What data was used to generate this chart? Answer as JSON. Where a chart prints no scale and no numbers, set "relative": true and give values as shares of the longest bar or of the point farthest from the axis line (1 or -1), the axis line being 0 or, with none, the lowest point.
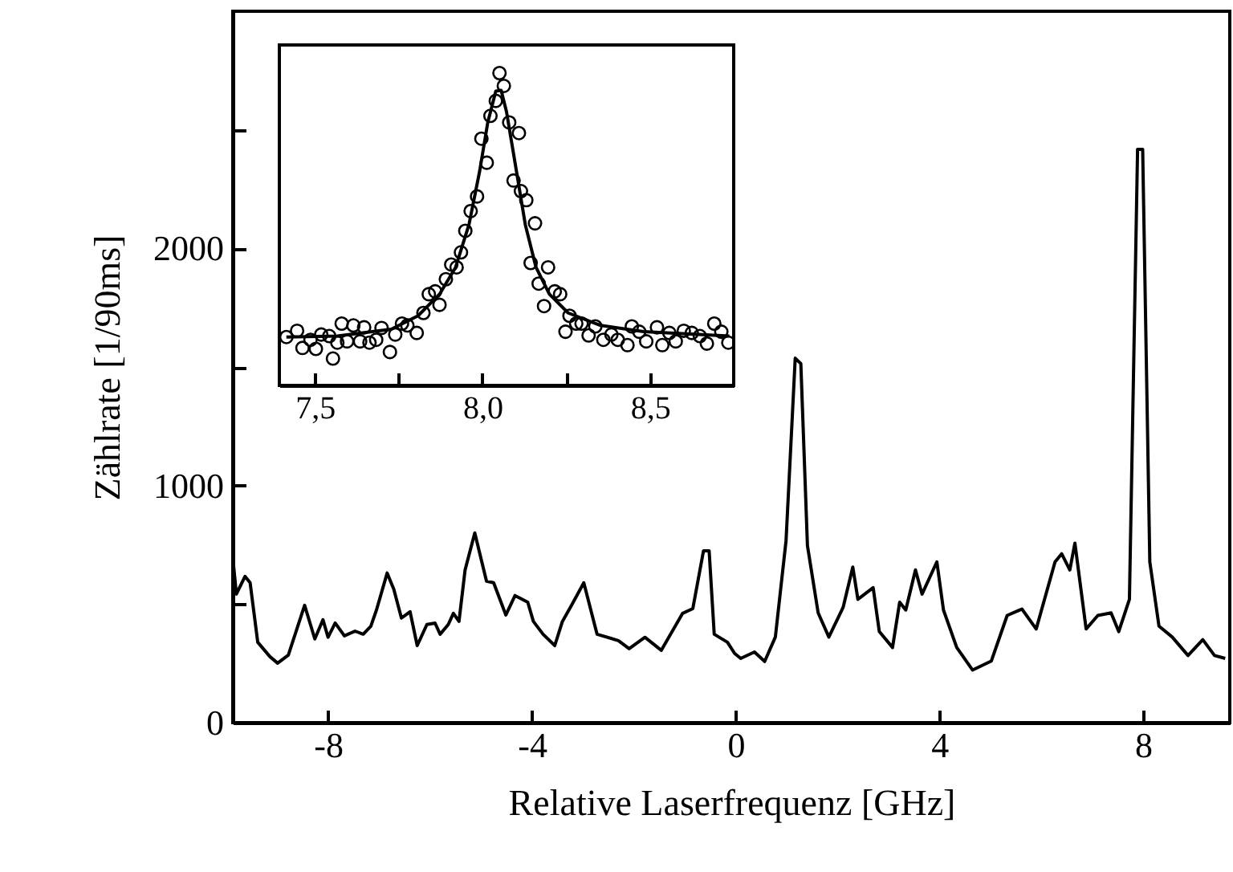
{
  "chart_data": [
    {
      "type": "line",
      "xlabel": "Relative Laserfrequenz [GHz]",
      "ylabel": "Zählrate [1/90ms]",
      "xlim": [
        -9.87,
        9.7
      ],
      "ylim": [
        0,
        3000
      ],
      "xticks": [
        -8,
        -4,
        0,
        4,
        8
      ],
      "yticks": [
        0,
        {
          "value": 500,
          "label": null
        },
        1000,
        {
          "value": 1500,
          "label": null
        },
        2000,
        {
          "value": 2500,
          "label": null
        }
      ],
      "grid": false,
      "marker": "none",
      "line_style": "solid",
      "x": [
        -9.87,
        -9.8,
        -9.63,
        -9.53,
        -9.38,
        -9.14,
        -8.99,
        -8.78,
        -8.46,
        -8.26,
        -8.1,
        -8.0,
        -7.86,
        -7.68,
        -7.47,
        -7.31,
        -7.16,
        -7.05,
        -6.84,
        -6.71,
        -6.56,
        -6.39,
        -6.25,
        -6.06,
        -5.9,
        -5.8,
        -5.64,
        -5.54,
        -5.43,
        -5.31,
        -5.12,
        -4.89,
        -4.75,
        -4.51,
        -4.33,
        -4.08,
        -3.97,
        -3.78,
        -3.55,
        -3.4,
        -3.22,
        -2.98,
        -2.72,
        -2.3,
        -2.09,
        -1.78,
        -1.46,
        -1.04,
        -0.84,
        -0.63,
        -0.52,
        -0.42,
        -0.16,
        -0.02,
        0.1,
        0.37,
        0.57,
        0.78,
        0.99,
        1.17,
        1.28,
        1.41,
        1.62,
        1.83,
        2.11,
        2.3,
        2.4,
        2.7,
        2.82,
        3.08,
        3.22,
        3.34,
        3.53,
        3.66,
        3.95,
        4.08,
        4.34,
        4.65,
        5.02,
        5.33,
        5.62,
        5.9,
        6.27,
        6.4,
        6.56,
        6.66,
        6.88,
        7.11,
        7.37,
        7.52,
        7.73,
        7.89,
        7.99,
        8.13,
        8.31,
        8.57,
        8.88,
        9.17,
        9.4,
        9.61
      ],
      "series": [
        {
          "color": "#000000",
          "values": [
            698,
            542,
            617,
            590,
            339,
            278,
            251,
            285,
            495,
            353,
            434,
            360,
            420,
            366,
            386,
            373,
            407,
            475,
            631,
            563,
            441,
            468,
            325,
            414,
            420,
            373,
            414,
            461,
            427,
            644,
            800,
            597,
            590,
            454,
            536,
            508,
            427,
            373,
            325,
            427,
            495,
            590,
            373,
            346,
            312,
            360,
            305,
            461,
            481,
            725,
            725,
            373,
            339,
            292,
            271,
            298,
            258,
            361,
            768,
            1537,
            1514,
            746,
            463,
            361,
            486,
            656,
            520,
            569,
            384,
            317,
            508,
            475,
            644,
            542,
            678,
            475,
            317,
            222,
            260,
            452,
            479,
            395,
            678,
            712,
            644,
            757,
            395,
            452,
            463,
            384,
            520,
            2418,
            2418,
            678,
            407,
            361,
            283,
            350,
            283,
            271
          ]
        }
      ]
    },
    {
      "type": "scatter",
      "relative": true,
      "xlim": [
        7.394,
        8.75
      ],
      "xticks": [
        {
          "value": 7.5,
          "label": "7,5"
        },
        {
          "value": 7.75,
          "label": null
        },
        {
          "value": 8.0,
          "label": "8,0"
        },
        {
          "value": 8.25,
          "label": null
        },
        {
          "value": 8.5,
          "label": "8,5"
        }
      ],
      "tick_labels": "x",
      "grid": false,
      "series": [
        {
          "type": "scatter",
          "color": "#000000",
          "marker": "circle",
          "x": [
            7.415,
            7.447,
            7.463,
            7.487,
            7.503,
            7.519,
            7.543,
            7.554,
            7.567,
            7.58,
            7.596,
            7.615,
            7.635,
            7.647,
            7.663,
            7.683,
            7.699,
            7.724,
            7.74,
            7.76,
            7.776,
            7.804,
            7.824,
            7.84,
            7.859,
            7.872,
            7.891,
            7.907,
            7.923,
            7.936,
            7.949,
            7.965,
            7.984,
            7.997,
            8.013,
            8.024,
            8.04,
            8.051,
            8.064,
            8.08,
            8.093,
            8.109,
            8.115,
            8.131,
            8.144,
            8.157,
            8.168,
            8.184,
            8.196,
            8.216,
            8.232,
            8.248,
            8.26,
            8.28,
            8.296,
            8.317,
            8.337,
            8.361,
            8.385,
            8.404,
            8.433,
            8.446,
            8.468,
            8.489,
            8.521,
            8.537,
            8.558,
            8.577,
            8.601,
            8.625,
            8.649,
            8.67,
            8.692,
            8.713,
            8.734
          ],
          "values": [
            0.155,
            0.175,
            0.12,
            0.146,
            0.117,
            0.163,
            0.158,
            0.086,
            0.137,
            0.198,
            0.141,
            0.192,
            0.141,
            0.186,
            0.137,
            0.146,
            0.184,
            0.107,
            0.163,
            0.198,
            0.192,
            0.168,
            0.232,
            0.292,
            0.301,
            0.258,
            0.34,
            0.387,
            0.378,
            0.426,
            0.495,
            0.558,
            0.605,
            0.79,
            0.713,
            0.863,
            0.911,
            1.0,
            0.959,
            0.842,
            0.656,
            0.808,
            0.622,
            0.593,
            0.392,
            0.519,
            0.326,
            0.254,
            0.378,
            0.301,
            0.292,
            0.172,
            0.223,
            0.198,
            0.198,
            0.16,
            0.189,
            0.146,
            0.163,
            0.146,
            0.129,
            0.189,
            0.172,
            0.141,
            0.186,
            0.129,
            0.168,
            0.141,
            0.175,
            0.168,
            0.158,
            0.134,
            0.198,
            0.172,
            0.137
          ]
        },
        {
          "type": "line",
          "color": "#000000",
          "marker": "none",
          "line_style": "solid",
          "x": [
            7.415,
            7.567,
            7.728,
            7.808,
            7.872,
            7.92,
            7.96,
            7.992,
            8.016,
            8.04,
            8.056,
            8.072,
            8.096,
            8.128,
            8.16,
            8.2,
            8.256,
            8.353,
            8.481,
            8.737
          ],
          "values": [
            0.155,
            0.158,
            0.18,
            0.223,
            0.292,
            0.378,
            0.515,
            0.687,
            0.842,
            0.942,
            0.945,
            0.876,
            0.722,
            0.515,
            0.378,
            0.292,
            0.232,
            0.192,
            0.172,
            0.158
          ]
        }
      ]
    }
  ]
}
